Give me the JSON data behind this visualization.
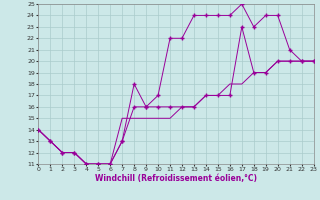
{
  "xlabel": "Windchill (Refroidissement éolien,°C)",
  "line1_x": [
    0,
    1,
    2,
    3,
    4,
    5,
    6,
    7,
    8,
    9,
    10,
    11,
    12,
    13,
    14,
    15,
    16,
    17,
    18,
    19,
    20,
    21,
    22,
    23
  ],
  "line1_y": [
    14,
    13,
    12,
    12,
    11,
    11,
    11,
    13,
    16,
    16,
    17,
    22,
    22,
    24,
    24,
    24,
    24,
    25,
    23,
    24,
    24,
    21,
    20,
    20
  ],
  "line2_x": [
    0,
    1,
    2,
    3,
    4,
    5,
    6,
    7,
    8,
    9,
    10,
    11,
    12,
    13,
    14,
    15,
    16,
    17,
    18,
    19,
    20,
    21,
    22,
    23
  ],
  "line2_y": [
    14,
    13,
    12,
    12,
    11,
    11,
    11,
    13,
    18,
    16,
    16,
    16,
    16,
    16,
    17,
    17,
    17,
    23,
    19,
    19,
    20,
    20,
    20,
    20
  ],
  "line3_x": [
    0,
    1,
    2,
    3,
    4,
    5,
    6,
    7,
    8,
    9,
    10,
    11,
    12,
    13,
    14,
    15,
    16,
    17,
    18,
    19,
    20,
    21,
    22,
    23
  ],
  "line3_y": [
    14,
    13,
    12,
    12,
    11,
    11,
    11,
    15,
    15,
    15,
    15,
    15,
    16,
    16,
    17,
    17,
    18,
    18,
    19,
    19,
    20,
    20,
    20,
    20
  ],
  "line_color": "#990099",
  "marker": "+",
  "bg_color": "#cce8e8",
  "grid_color": "#aacccc",
  "xlim": [
    0,
    23
  ],
  "ylim": [
    11,
    25
  ],
  "xtick_step": 1,
  "ytick_step": 1,
  "label_fontsize": 5.5,
  "tick_fontsize": 4.5
}
